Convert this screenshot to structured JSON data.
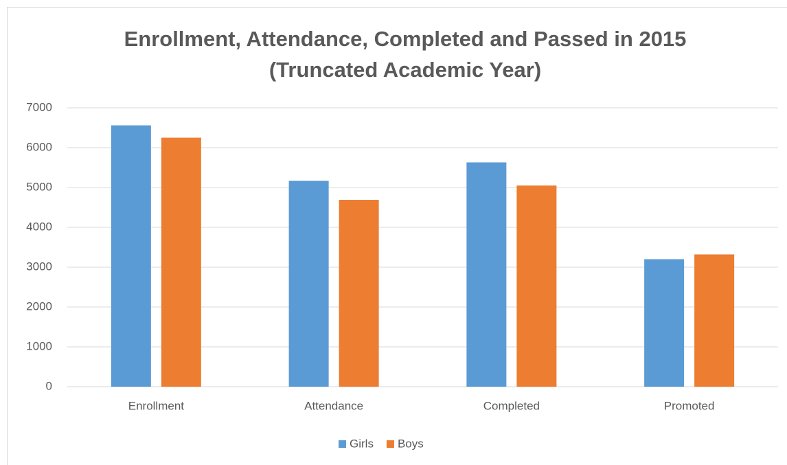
{
  "chart_data": {
    "type": "bar",
    "title": "Enrollment, Attendance, Completed and Passed in 2015",
    "subtitle": "(Truncated Academic Year)",
    "categories": [
      "Enrollment",
      "Attendance",
      "Completed",
      "Promoted"
    ],
    "series": [
      {
        "name": "Girls",
        "color": "#5b9bd5",
        "values": [
          6560,
          5170,
          5630,
          3200
        ]
      },
      {
        "name": "Boys",
        "color": "#ed7d31",
        "values": [
          6250,
          4690,
          5050,
          3320
        ]
      }
    ],
    "ylim": [
      0,
      7000
    ],
    "yticks": [
      0,
      1000,
      2000,
      3000,
      4000,
      5000,
      6000,
      7000
    ],
    "grid": true,
    "legend": "bottom"
  }
}
